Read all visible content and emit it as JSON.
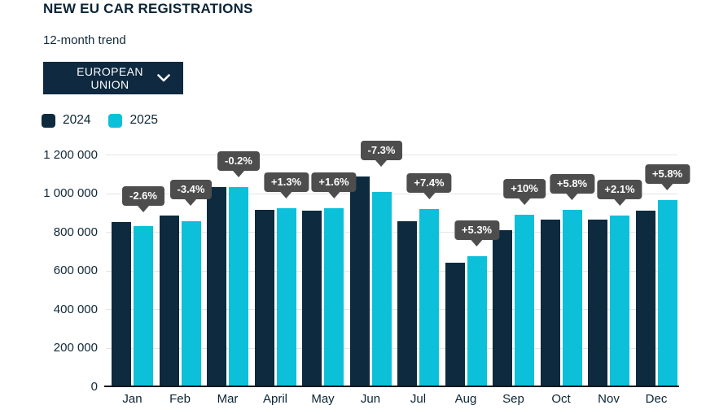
{
  "header": {
    "title": "NEW EU CAR REGISTRATIONS",
    "subtitle": "12-month trend"
  },
  "filter": {
    "label": "EUROPEAN UNION",
    "icon": "chevron-down-icon"
  },
  "colors": {
    "navy": "#0d2a3e",
    "cyan": "#0cc0da",
    "label_background": "#4d4d4d",
    "label_text": "#ffffff",
    "gridline": "#e4e4e4",
    "axis_line": "#10181f",
    "text": "#0b2435",
    "dropdown_background": "#0e2940"
  },
  "chart_data": {
    "type": "bar",
    "title": "NEW EU CAR REGISTRATIONS",
    "subtitle": "12-month trend",
    "categories": [
      "Jan",
      "Feb",
      "Mar",
      "April",
      "May",
      "Jun",
      "Jul",
      "Aug",
      "Sep",
      "Oct",
      "Nov",
      "Dec"
    ],
    "series": [
      {
        "name": "2024",
        "color": "#0d2a3e",
        "values": [
          852000,
          884000,
          1032000,
          912000,
          908000,
          1085000,
          853000,
          640000,
          807000,
          863000,
          865000,
          910000
        ]
      },
      {
        "name": "2025",
        "color": "#0cc0da",
        "values": [
          830000,
          854000,
          1030000,
          924000,
          923000,
          1006000,
          916000,
          674000,
          888000,
          913000,
          883000,
          963000
        ]
      }
    ],
    "change_labels": [
      "-2.6%",
      "-3.4%",
      "-0.2%",
      "+1.3%",
      "+1.6%",
      "-7.3%",
      "+7.4%",
      "+5.3%",
      "+10%",
      "+5.8%",
      "+2.1%",
      "+5.8%"
    ],
    "xlabel": "",
    "ylabel": "",
    "ylim": [
      0,
      1200000
    ],
    "ytick_step": 200000,
    "ytick_labels": [
      "0",
      "200 000",
      "400 000",
      "600 000",
      "800 000",
      "1 000 000",
      "1 200 000"
    ],
    "grid": true,
    "legend_position": "top-left"
  }
}
